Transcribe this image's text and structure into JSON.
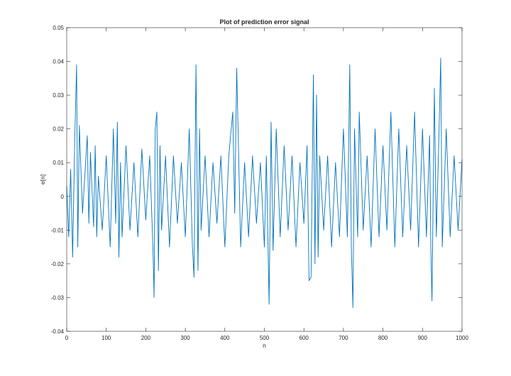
{
  "chart_data": {
    "type": "line",
    "title": "Plot of prediction error signal",
    "xlabel": "n",
    "ylabel": "e[n]",
    "xlim": [
      0,
      1000
    ],
    "ylim": [
      -0.04,
      0.05
    ],
    "xticks": [
      0,
      100,
      200,
      300,
      400,
      500,
      600,
      700,
      800,
      900,
      1000
    ],
    "yticks": [
      -0.04,
      -0.03,
      -0.02,
      -0.01,
      0,
      0.01,
      0.02,
      0.03,
      0.04,
      0.05
    ],
    "xtick_labels": [
      "0",
      "100",
      "200",
      "300",
      "400",
      "500",
      "600",
      "700",
      "800",
      "900",
      "1000"
    ],
    "ytick_labels": [
      "-0.04",
      "-0.03",
      "-0.02",
      "-0.01",
      "0",
      "0.01",
      "0.02",
      "0.03",
      "0.04",
      "0.05"
    ],
    "grid": false,
    "line_color": "#0072BD",
    "series": [
      {
        "x": [
          0,
          5,
          10,
          15,
          20,
          25,
          28,
          32,
          40,
          52,
          56,
          60,
          68,
          72,
          76,
          80,
          90,
          100,
          110,
          118,
          124,
          128,
          132,
          136,
          140,
          150,
          160,
          170,
          180,
          190,
          200,
          210,
          218,
          221,
          224,
          228,
          232,
          236,
          240,
          250,
          260,
          270,
          280,
          290,
          300,
          310,
          318,
          322,
          327,
          332,
          336,
          340,
          350,
          360,
          370,
          380,
          390,
          400,
          410,
          420,
          425,
          430,
          440,
          450,
          460,
          470,
          480,
          490,
          500,
          505,
          512,
          517,
          522,
          530,
          540,
          550,
          560,
          570,
          580,
          590,
          600,
          608,
          613,
          618,
          624,
          628,
          632,
          636,
          640,
          650,
          660,
          670,
          680,
          690,
          700,
          710,
          716,
          720,
          724,
          728,
          736,
          740,
          750,
          760,
          770,
          780,
          790,
          800,
          810,
          820,
          830,
          840,
          850,
          860,
          870,
          880,
          890,
          900,
          910,
          918,
          921,
          924,
          930,
          935,
          942,
          946,
          950,
          960,
          970,
          980,
          990,
          1000
        ],
        "y": [
          0.003,
          -0.012,
          0.008,
          -0.018,
          0.015,
          0.039,
          -0.015,
          0.021,
          -0.005,
          0.018,
          -0.008,
          0.013,
          -0.009,
          0.015,
          -0.012,
          0.006,
          -0.01,
          0.012,
          -0.015,
          0.02,
          -0.008,
          0.022,
          -0.018,
          0.01,
          -0.012,
          0.015,
          -0.01,
          0.01,
          -0.012,
          0.014,
          -0.007,
          0.012,
          -0.015,
          -0.03,
          0.02,
          0.025,
          -0.022,
          0.015,
          -0.01,
          0.012,
          -0.015,
          0.012,
          -0.008,
          0.01,
          -0.012,
          0.02,
          -0.015,
          -0.024,
          0.039,
          -0.022,
          0.02,
          -0.01,
          0.012,
          -0.012,
          0.01,
          -0.008,
          0.012,
          -0.015,
          0.012,
          0.025,
          -0.005,
          0.038,
          -0.015,
          0.01,
          -0.012,
          0.012,
          -0.008,
          0.01,
          -0.015,
          0.012,
          -0.032,
          0.022,
          -0.016,
          0.02,
          -0.012,
          0.015,
          -0.01,
          0.012,
          -0.015,
          0.01,
          -0.008,
          0.015,
          -0.025,
          -0.024,
          0.036,
          -0.02,
          0.03,
          -0.018,
          0.012,
          -0.01,
          0.012,
          -0.015,
          0.01,
          -0.012,
          0.02,
          -0.012,
          0.039,
          -0.015,
          -0.033,
          0.02,
          -0.012,
          0.025,
          -0.01,
          0.012,
          -0.015,
          0.02,
          -0.012,
          0.015,
          -0.01,
          0.025,
          -0.015,
          0.02,
          -0.012,
          0.015,
          -0.01,
          0.025,
          -0.015,
          0.02,
          -0.012,
          0.018,
          -0.015,
          -0.031,
          0.032,
          -0.012,
          0.02,
          0.041,
          -0.015,
          0.02,
          -0.012,
          0.012,
          -0.01,
          0.011
        ]
      }
    ]
  }
}
